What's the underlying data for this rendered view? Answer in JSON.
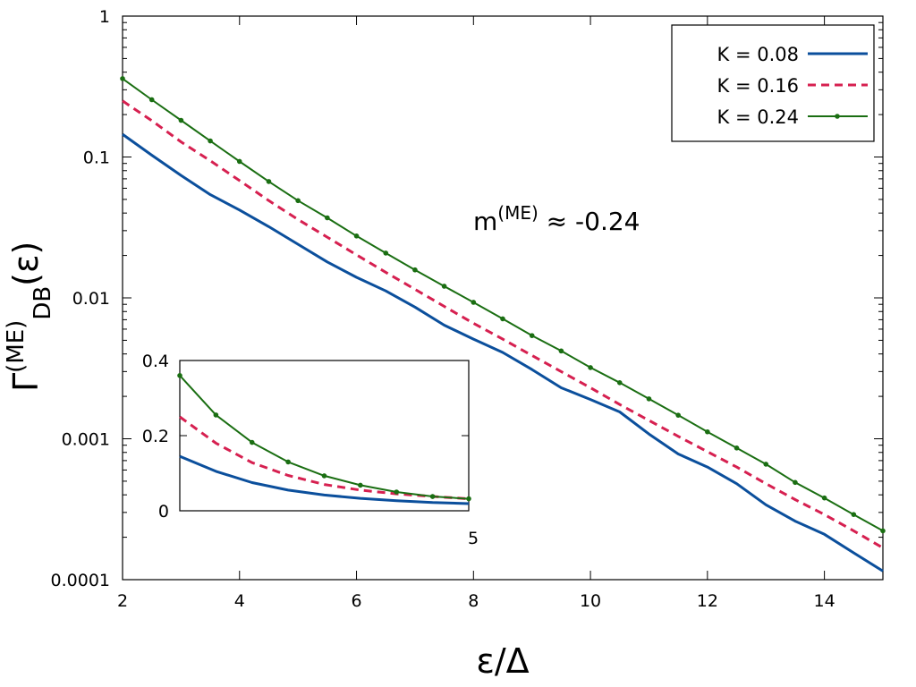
{
  "chart_data": {
    "type": "line",
    "title": "",
    "xlabel": "ε/Δ",
    "ylabel": {
      "main": "Γ",
      "sup": "(ME)",
      "sub": "DB",
      "arg": "(ε)"
    },
    "yscale": "log",
    "xlim": [
      2,
      15
    ],
    "ylim": [
      0.0001,
      1
    ],
    "x_ticks": [
      2,
      4,
      6,
      8,
      10,
      12,
      14
    ],
    "y_ticks": [
      {
        "value": 0.0001,
        "label": "0.0001"
      },
      {
        "value": 0.001,
        "label": "0.001"
      },
      {
        "value": 0.01,
        "label": "0.01"
      },
      {
        "value": 0.1,
        "label": "0.1"
      },
      {
        "value": 1,
        "label": "1"
      }
    ],
    "grid": false,
    "legend_position": "top-right",
    "annotation": {
      "base": "m",
      "sup": "(ME)",
      "rest": " ≈ -0.24"
    },
    "series": [
      {
        "name": "K = 0.08",
        "color": "#0b4f9c",
        "style": "solid",
        "markers": false,
        "x": [
          2,
          2.5,
          3,
          3.5,
          4,
          4.5,
          5,
          5.5,
          6,
          6.5,
          7,
          7.5,
          8,
          8.5,
          9,
          9.5,
          10,
          10.5,
          11,
          11.5,
          12,
          12.5,
          13,
          13.5,
          14,
          14.5,
          15
        ],
        "values": [
          0.145,
          0.103,
          0.074,
          0.054,
          0.042,
          0.032,
          0.024,
          0.018,
          0.014,
          0.0112,
          0.0086,
          0.0064,
          0.0051,
          0.0041,
          0.0031,
          0.0023,
          0.0019,
          0.00155,
          0.00108,
          0.00078,
          0.00063,
          0.00048,
          0.00034,
          0.00026,
          0.00021,
          0.000155,
          0.000115
        ]
      },
      {
        "name": "K = 0.16",
        "color": "#d62050",
        "style": "dashed",
        "markers": false,
        "x": [
          2,
          2.5,
          3,
          3.5,
          4,
          4.5,
          5,
          5.5,
          6,
          6.5,
          7,
          7.5,
          8,
          8.5,
          9,
          9.5,
          10,
          10.5,
          11,
          11.5,
          12,
          12.5,
          13,
          13.5,
          14,
          14.5,
          15
        ],
        "values": [
          0.25,
          0.181,
          0.128,
          0.094,
          0.068,
          0.049,
          0.036,
          0.027,
          0.0202,
          0.0152,
          0.0115,
          0.0087,
          0.0066,
          0.0051,
          0.0039,
          0.003,
          0.0023,
          0.00175,
          0.00135,
          0.00104,
          0.00081,
          0.00063,
          0.00048,
          0.00037,
          0.00029,
          0.000222,
          0.000168
        ]
      },
      {
        "name": "K = 0.24",
        "color": "#1a6e12",
        "style": "solid",
        "markers": true,
        "x": [
          2,
          2.5,
          3,
          3.5,
          4,
          4.5,
          5,
          5.5,
          6,
          6.5,
          7,
          7.5,
          8,
          8.5,
          9,
          9.5,
          10,
          10.5,
          11,
          11.5,
          12,
          12.5,
          13,
          13.5,
          14,
          14.5,
          15
        ],
        "values": [
          0.36,
          0.255,
          0.182,
          0.13,
          0.093,
          0.067,
          0.049,
          0.037,
          0.0275,
          0.0208,
          0.0158,
          0.0121,
          0.0093,
          0.0071,
          0.0054,
          0.0042,
          0.0032,
          0.0025,
          0.00192,
          0.00147,
          0.00112,
          0.00086,
          0.00066,
          0.00049,
          0.00038,
          0.00029,
          0.000222
        ]
      }
    ],
    "inset": {
      "xlim": [
        1,
        5
      ],
      "ylim": [
        0,
        0.4
      ],
      "y_ticks": [
        {
          "value": 0,
          "label": "0"
        },
        {
          "value": 0.2,
          "label": "0.2"
        },
        {
          "value": 0.4,
          "label": "0.4"
        }
      ],
      "x_ticks": [
        {
          "value": 5,
          "label": "5"
        }
      ],
      "series": [
        {
          "name": "K = 0.08",
          "color": "#0b4f9c",
          "style": "solid",
          "markers": false,
          "x": [
            1,
            1.5,
            2,
            2.5,
            3,
            3.5,
            4,
            4.5,
            5
          ],
          "values": [
            0.145,
            0.105,
            0.075,
            0.055,
            0.042,
            0.033,
            0.027,
            0.022,
            0.019
          ]
        },
        {
          "name": "K = 0.16",
          "color": "#d62050",
          "style": "dashed",
          "markers": false,
          "x": [
            1,
            1.5,
            2,
            2.5,
            3,
            3.5,
            4,
            4.5,
            5
          ],
          "values": [
            0.25,
            0.18,
            0.128,
            0.094,
            0.07,
            0.055,
            0.045,
            0.038,
            0.032
          ]
        },
        {
          "name": "K = 0.24",
          "color": "#1a6e12",
          "style": "solid",
          "markers": true,
          "x": [
            1,
            1.5,
            2,
            2.5,
            3,
            3.5,
            4,
            4.5,
            5
          ],
          "values": [
            0.36,
            0.255,
            0.182,
            0.13,
            0.093,
            0.068,
            0.05,
            0.038,
            0.032
          ]
        }
      ]
    }
  }
}
